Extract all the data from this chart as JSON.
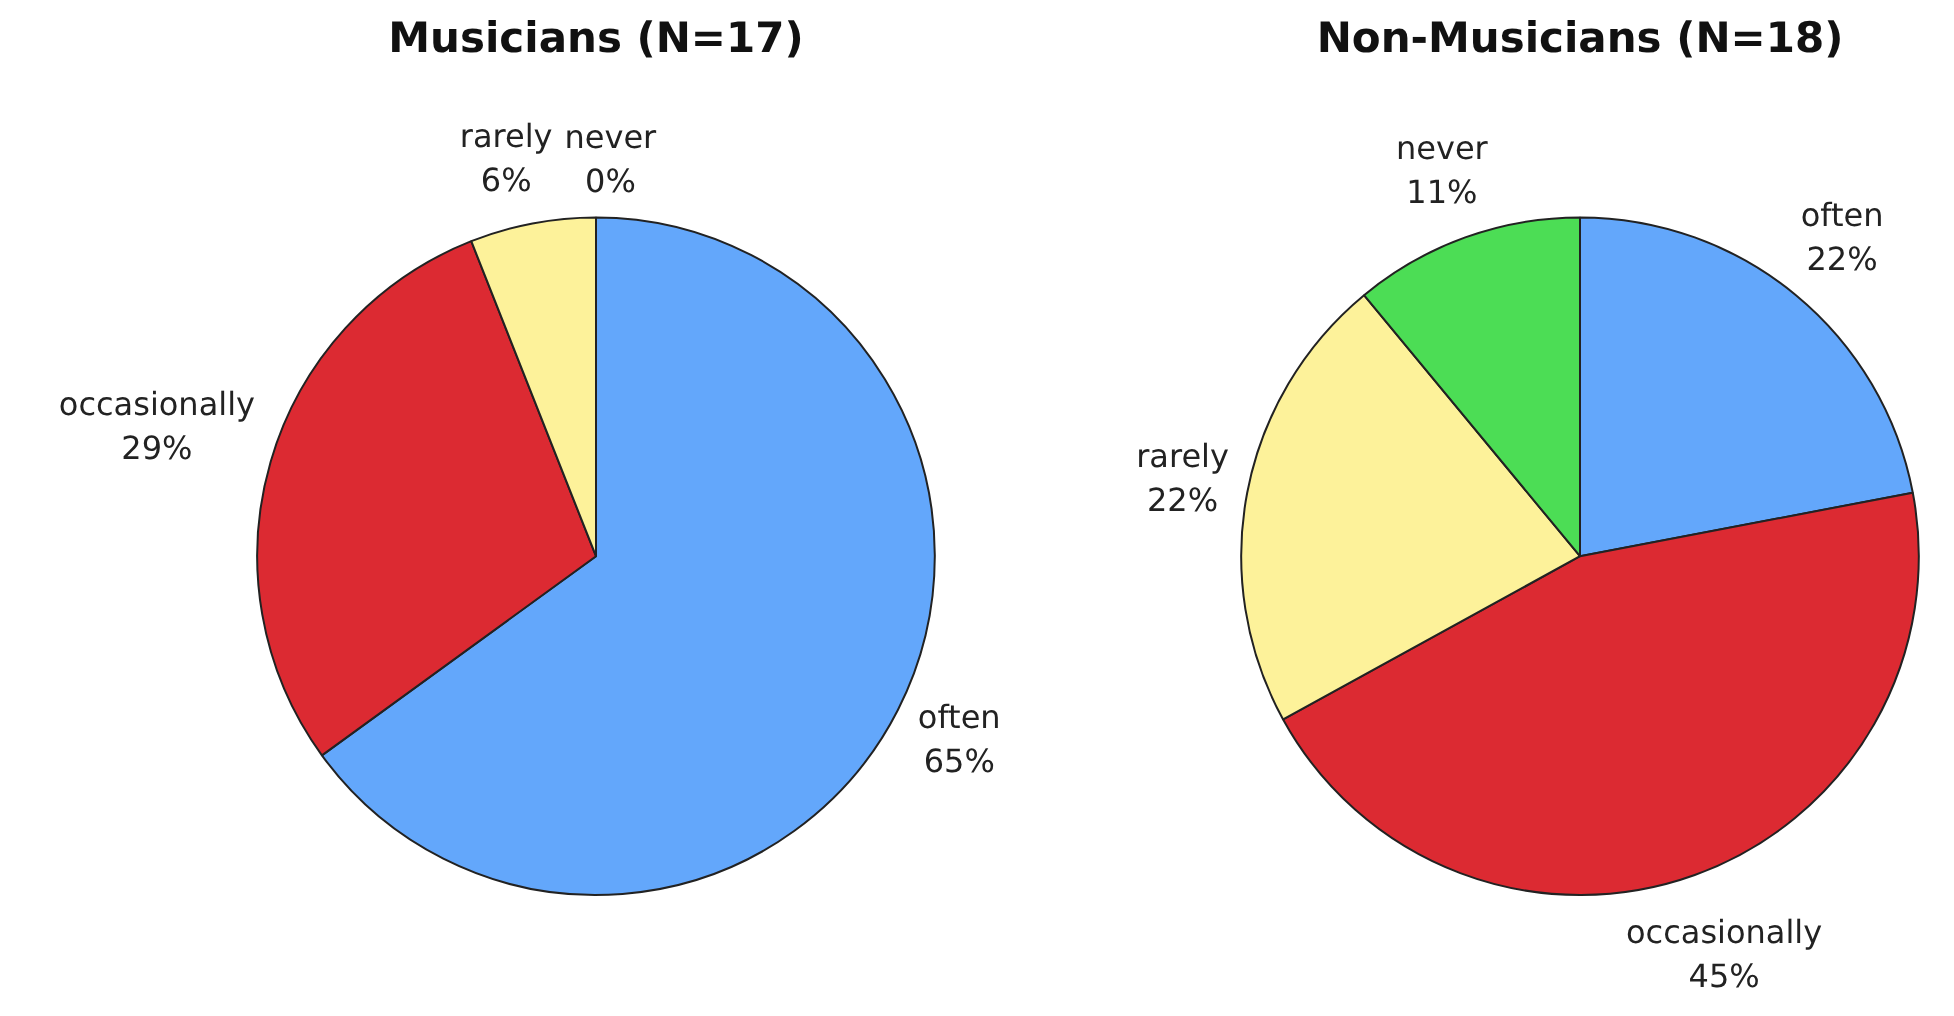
{
  "chart_data": [
    {
      "type": "pie",
      "title": "Musicians (N=17)",
      "categories": [
        "often",
        "occasionally",
        "rarely",
        "never"
      ],
      "values": [
        65,
        29,
        6,
        0
      ],
      "colors": [
        "#63a7fb",
        "#dc2a32",
        "#fdf29a",
        "#4cdd55"
      ],
      "value_labels": [
        "65%",
        "29%",
        "6%",
        "0%"
      ]
    },
    {
      "type": "pie",
      "title": "Non-Musicians (N=18)",
      "categories": [
        "often",
        "occasionally",
        "rarely",
        "never"
      ],
      "values": [
        22,
        45,
        22,
        11
      ],
      "colors": [
        "#63a7fb",
        "#dc2a32",
        "#fdf29a",
        "#4cdd55"
      ],
      "value_labels": [
        "22%",
        "45%",
        "22%",
        "11%"
      ]
    }
  ]
}
